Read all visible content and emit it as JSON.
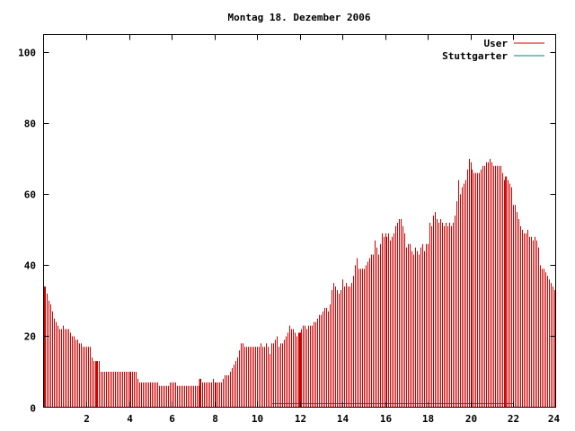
{
  "chart_data": {
    "type": "bar",
    "title": "Montag 18. Dezember 2006",
    "xlabel": "",
    "ylabel": "",
    "xlim": [
      0,
      24
    ],
    "ylim": [
      0,
      105
    ],
    "x_ticks": [
      "2",
      "4",
      "6",
      "8",
      "10",
      "12",
      "14",
      "16",
      "18",
      "20",
      "22",
      "24"
    ],
    "y_ticks": [
      "0",
      "20",
      "40",
      "60",
      "80",
      "100"
    ],
    "grid": false,
    "legend_position": "top-right",
    "series": [
      {
        "name": "User",
        "color": "#cc0000",
        "sample_interval_minutes": 5,
        "highlight_hours": [
          2.5,
          7.333,
          12.0,
          21.667
        ],
        "values": [
          34,
          34,
          32,
          30,
          29,
          27,
          25,
          24,
          23,
          22,
          22,
          23,
          22,
          22,
          22,
          21,
          20,
          20,
          19,
          19,
          18,
          18,
          17,
          17,
          17,
          17,
          17,
          14,
          13,
          13,
          13,
          13,
          10,
          10,
          10,
          10,
          10,
          10,
          10,
          10,
          10,
          10,
          10,
          10,
          10,
          10,
          10,
          10,
          10,
          10,
          10,
          10,
          10,
          8,
          7,
          7,
          7,
          7,
          7,
          7,
          7,
          7,
          7,
          7,
          7,
          6,
          6,
          6,
          6,
          6,
          6,
          7,
          7,
          7,
          7,
          6,
          6,
          6,
          6,
          6,
          6,
          6,
          6,
          6,
          6,
          6,
          6,
          6,
          8,
          7,
          7,
          7,
          7,
          7,
          7,
          8,
          7,
          7,
          7,
          7,
          7,
          8,
          9,
          9,
          9,
          10,
          11,
          12,
          13,
          14,
          16,
          18,
          18,
          17,
          17,
          17,
          17,
          17,
          17,
          17,
          17,
          17,
          18,
          17,
          17,
          18,
          17,
          15,
          18,
          18,
          19,
          20,
          17,
          18,
          18,
          19,
          20,
          21,
          23,
          22,
          22,
          21,
          20,
          21,
          21,
          22,
          23,
          23,
          22,
          23,
          23,
          23,
          24,
          24,
          25,
          26,
          26,
          27,
          28,
          28,
          27,
          29,
          33,
          35,
          34,
          33,
          32,
          33,
          36,
          34,
          35,
          34,
          34,
          35,
          37,
          40,
          42,
          39,
          39,
          39,
          39,
          40,
          41,
          42,
          43,
          43,
          47,
          45,
          43,
          46,
          49,
          48,
          49,
          48,
          49,
          47,
          48,
          49,
          51,
          52,
          53,
          53,
          51,
          49,
          45,
          46,
          46,
          44,
          43,
          45,
          44,
          43,
          45,
          46,
          44,
          46,
          46,
          52,
          51,
          54,
          55,
          53,
          52,
          53,
          52,
          51,
          52,
          51,
          52,
          51,
          52,
          54,
          58,
          64,
          60,
          62,
          63,
          64,
          67,
          70,
          69,
          67,
          66,
          66,
          66,
          66,
          67,
          68,
          68,
          69,
          69,
          70,
          69,
          68,
          68,
          68,
          68,
          68,
          66,
          64,
          65,
          64,
          63,
          62,
          57,
          57,
          55,
          53,
          51,
          50,
          49,
          49,
          50,
          48,
          48,
          47,
          48,
          47,
          45,
          40,
          39,
          39,
          38,
          37,
          36,
          35,
          34,
          33
        ]
      },
      {
        "name": "Stuttgarter",
        "color": "#008080",
        "x_range": [
          10.67,
          22.0
        ],
        "value": 1
      }
    ]
  }
}
